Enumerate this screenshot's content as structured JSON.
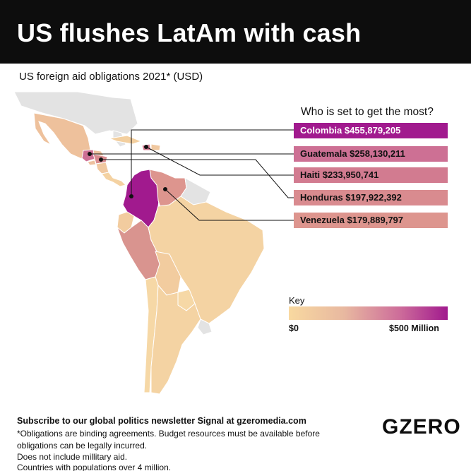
{
  "header": {
    "title": "US flushes LatAm with cash"
  },
  "subtitle": "US foreign aid obligations 2021* (USD)",
  "ranking": {
    "title": "Who is set to get the most?",
    "items": [
      {
        "label": "Colombia $455,879,205",
        "country": "Colombia",
        "value": 455879205,
        "color": "#a11a8e",
        "text_color": "#ffffff"
      },
      {
        "label": "Guatemala $258,130,211",
        "country": "Guatemala",
        "value": 258130211,
        "color": "#cd7094",
        "text_color": "#111111"
      },
      {
        "label": "Haiti $233,950,741",
        "country": "Haiti",
        "value": 233950741,
        "color": "#d27b90",
        "text_color": "#111111"
      },
      {
        "label": "Honduras $197,922,392",
        "country": "Honduras",
        "value": 197922392,
        "color": "#d98b8f",
        "text_color": "#111111"
      },
      {
        "label": "Venezuela $179,889,797",
        "country": "Venezuela",
        "value": 179889797,
        "color": "#dd958e",
        "text_color": "#111111"
      }
    ]
  },
  "key": {
    "label": "Key",
    "min": "$0",
    "max": "$500 Million",
    "min_color": "#f8d9a0",
    "max_color": "#a11a8e"
  },
  "footer": {
    "subscribe": "Subscribe to our global politics newsletter Signal at gzeromedia.com",
    "notes": [
      "*Obligations are binding agreements. Budget resources must be available before",
      "obligations can be legally incurred.",
      "Does not include millitary aid.",
      "Countries with populations over 4 million."
    ]
  },
  "logo": "GZERO"
}
